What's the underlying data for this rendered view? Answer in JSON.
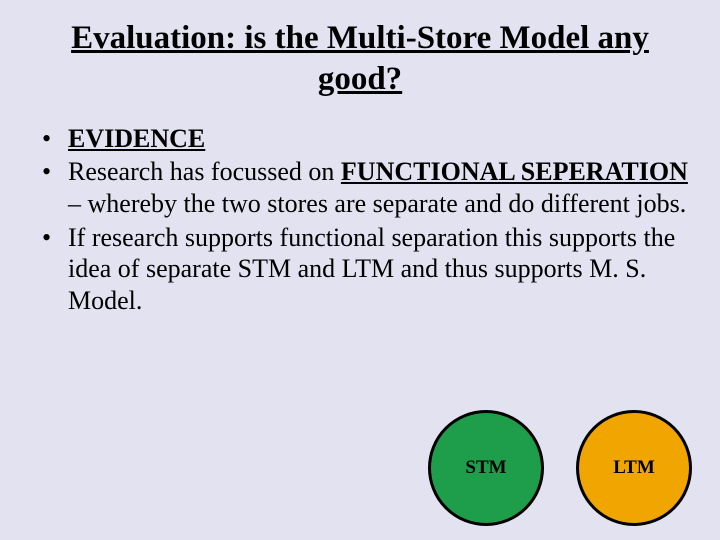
{
  "background_color": "#e2e2f0",
  "text_color": "#000000",
  "title": "Evaluation: is the Multi-Store Model any good?",
  "bullets": [
    {
      "prefix": "",
      "underlined_bold": "EVIDENCE",
      "suffix": ""
    },
    {
      "prefix": "Research has focussed on ",
      "underlined_bold": "FUNCTIONAL SEPERATION",
      "suffix": " – whereby the two stores are separate and do different jobs."
    },
    {
      "prefix": "If research supports functional separation this supports the idea of separate STM and LTM and thus supports M. S. Model.",
      "underlined_bold": "",
      "suffix": ""
    }
  ],
  "circles": [
    {
      "label": "STM",
      "fill": "#1e9e4a",
      "border": "#000000",
      "border_width": 3,
      "diameter": 116,
      "font_size": 19,
      "label_color": "#000000"
    },
    {
      "label": "LTM",
      "fill": "#f0a500",
      "border": "#000000",
      "border_width": 3,
      "diameter": 116,
      "font_size": 19,
      "label_color": "#000000"
    }
  ]
}
